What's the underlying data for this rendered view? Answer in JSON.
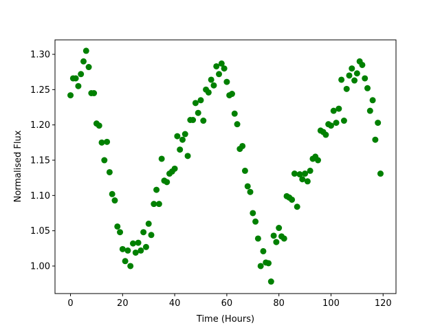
{
  "chart_data": {
    "type": "scatter",
    "xlabel": "Time (Hours)",
    "ylabel": "Normalised Flux",
    "color": "#008000",
    "x": [
      0,
      1,
      2,
      3,
      4,
      5,
      6,
      7,
      8,
      9,
      10,
      11,
      12,
      13,
      14,
      15,
      16,
      17,
      18,
      19,
      20,
      21,
      22,
      23,
      24,
      25,
      26,
      27,
      28,
      29,
      30,
      31,
      32,
      33,
      34,
      35,
      36,
      37,
      38,
      39,
      40,
      41,
      42,
      43,
      44,
      45,
      46,
      47,
      48,
      49,
      50,
      51,
      52,
      53,
      54,
      55,
      56,
      57,
      58,
      59,
      60,
      61,
      62,
      63,
      64,
      65,
      66,
      67,
      68,
      69,
      70,
      71,
      72,
      73,
      74,
      75,
      76,
      77,
      78,
      79,
      80,
      81,
      82,
      83,
      84,
      85,
      86,
      87,
      88,
      89,
      90,
      91,
      92,
      93,
      94,
      95,
      96,
      97,
      98,
      99,
      100,
      101,
      102,
      103,
      104,
      105,
      106,
      107,
      108,
      109,
      110,
      111,
      112,
      113,
      114,
      115,
      116,
      117,
      118,
      119
    ],
    "values": [
      1.242,
      1.266,
      1.266,
      1.255,
      1.272,
      1.29,
      1.305,
      1.282,
      1.245,
      1.245,
      1.202,
      1.199,
      1.175,
      1.15,
      1.176,
      1.133,
      1.102,
      1.093,
      1.056,
      1.048,
      1.024,
      1.007,
      1.022,
      1.0,
      1.032,
      1.019,
      1.033,
      1.022,
      1.048,
      1.027,
      1.06,
      1.044,
      1.088,
      1.108,
      1.088,
      1.152,
      1.121,
      1.119,
      1.131,
      1.134,
      1.138,
      1.184,
      1.165,
      1.179,
      1.187,
      1.156,
      1.207,
      1.207,
      1.231,
      1.217,
      1.235,
      1.206,
      1.25,
      1.246,
      1.264,
      1.256,
      1.283,
      1.272,
      1.287,
      1.28,
      1.261,
      1.242,
      1.244,
      1.216,
      1.201,
      1.166,
      1.17,
      1.135,
      1.113,
      1.105,
      1.075,
      1.063,
      1.039,
      1.0,
      1.021,
      1.005,
      1.004,
      0.978,
      1.043,
      1.034,
      1.054,
      1.042,
      1.039,
      1.099,
      1.097,
      1.094,
      1.131,
      1.084,
      1.13,
      1.123,
      1.131,
      1.12,
      1.135,
      1.152,
      1.155,
      1.15,
      1.192,
      1.19,
      1.186,
      1.201,
      1.199,
      1.22,
      1.203,
      1.223,
      1.264,
      1.206,
      1.251,
      1.27,
      1.28,
      1.263,
      1.273,
      1.29,
      1.285,
      1.266,
      1.252,
      1.22,
      1.235,
      1.179,
      1.203,
      1.131
    ],
    "xlim": [
      -5.95,
      124.95
    ],
    "ylim": [
      0.961,
      1.3205
    ],
    "xticks": [
      0,
      20,
      40,
      60,
      80,
      100,
      120
    ],
    "yticks": [
      {
        "value": 1.0,
        "label": "1.00"
      },
      1.05,
      {
        "value": 1.1,
        "label": "1.10"
      },
      1.15,
      {
        "value": 1.2,
        "label": "1.20"
      },
      1.25,
      {
        "value": 1.3,
        "label": "1.30"
      }
    ]
  }
}
